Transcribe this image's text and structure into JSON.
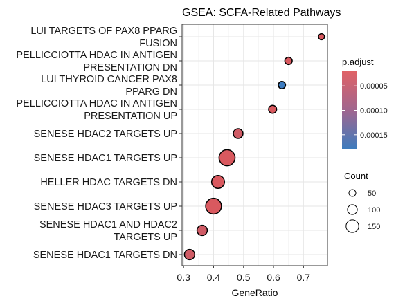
{
  "chart_data": {
    "type": "scatter",
    "title": "GSEA: SCFA-Related Pathways",
    "xlabel": "GeneRatio",
    "ylabel": "",
    "xlim": [
      0.295,
      0.78
    ],
    "xticks": [
      "0.3",
      "0.4",
      "0.5",
      "0.6",
      "0.7"
    ],
    "xtick_values": [
      0.3,
      0.4,
      0.5,
      0.6,
      0.7
    ],
    "grid": true,
    "legend_position": "right",
    "color_legend": {
      "title": "p.adjust",
      "labels": [
        "0.00005",
        "0.00010",
        "0.00015"
      ],
      "values": [
        5e-05,
        0.0001,
        0.00015
      ],
      "low_color": "#d9595f",
      "high_color": "#3c7bbf"
    },
    "size_legend": {
      "title": "Count",
      "labels": [
        "50",
        "100",
        "150"
      ],
      "values": [
        50,
        100,
        150
      ]
    },
    "pathways": [
      {
        "label": [
          "LUI TARGETS OF PAX8 PPARG",
          "FUSION"
        ],
        "x": 0.76,
        "count": 25,
        "p_adjust": 3e-05
      },
      {
        "label": [
          "PELLICCIOTTA HDAC IN ANTIGEN",
          "PRESENTATION DN"
        ],
        "x": 0.65,
        "count": 45,
        "p_adjust": 3e-05
      },
      {
        "label": [
          "LUI THYROID CANCER PAX8",
          "PPARG DN"
        ],
        "x": 0.628,
        "count": 42,
        "p_adjust": 0.00018
      },
      {
        "label": [
          "PELLICCIOTTA HDAC IN ANTIGEN",
          "PRESENTATION UP"
        ],
        "x": 0.597,
        "count": 55,
        "p_adjust": 3e-05
      },
      {
        "label": [
          "SENESE HDAC2 TARGETS UP"
        ],
        "x": 0.482,
        "count": 80,
        "p_adjust": 4e-05
      },
      {
        "label": [
          "SENESE HDAC1 TARGETS UP"
        ],
        "x": 0.445,
        "count": 180,
        "p_adjust": 3e-05
      },
      {
        "label": [
          "HELLER HDAC TARGETS DN"
        ],
        "x": 0.415,
        "count": 130,
        "p_adjust": 3e-05
      },
      {
        "label": [
          "SENESE HDAC3 TARGETS UP"
        ],
        "x": 0.4,
        "count": 175,
        "p_adjust": 3e-05
      },
      {
        "label": [
          "SENESE HDAC1 AND HDAC2",
          "TARGETS UP"
        ],
        "x": 0.362,
        "count": 90,
        "p_adjust": 4e-05
      },
      {
        "label": [
          "SENESE HDAC1 TARGETS DN"
        ],
        "x": 0.32,
        "count": 90,
        "p_adjust": 4e-05
      }
    ]
  }
}
